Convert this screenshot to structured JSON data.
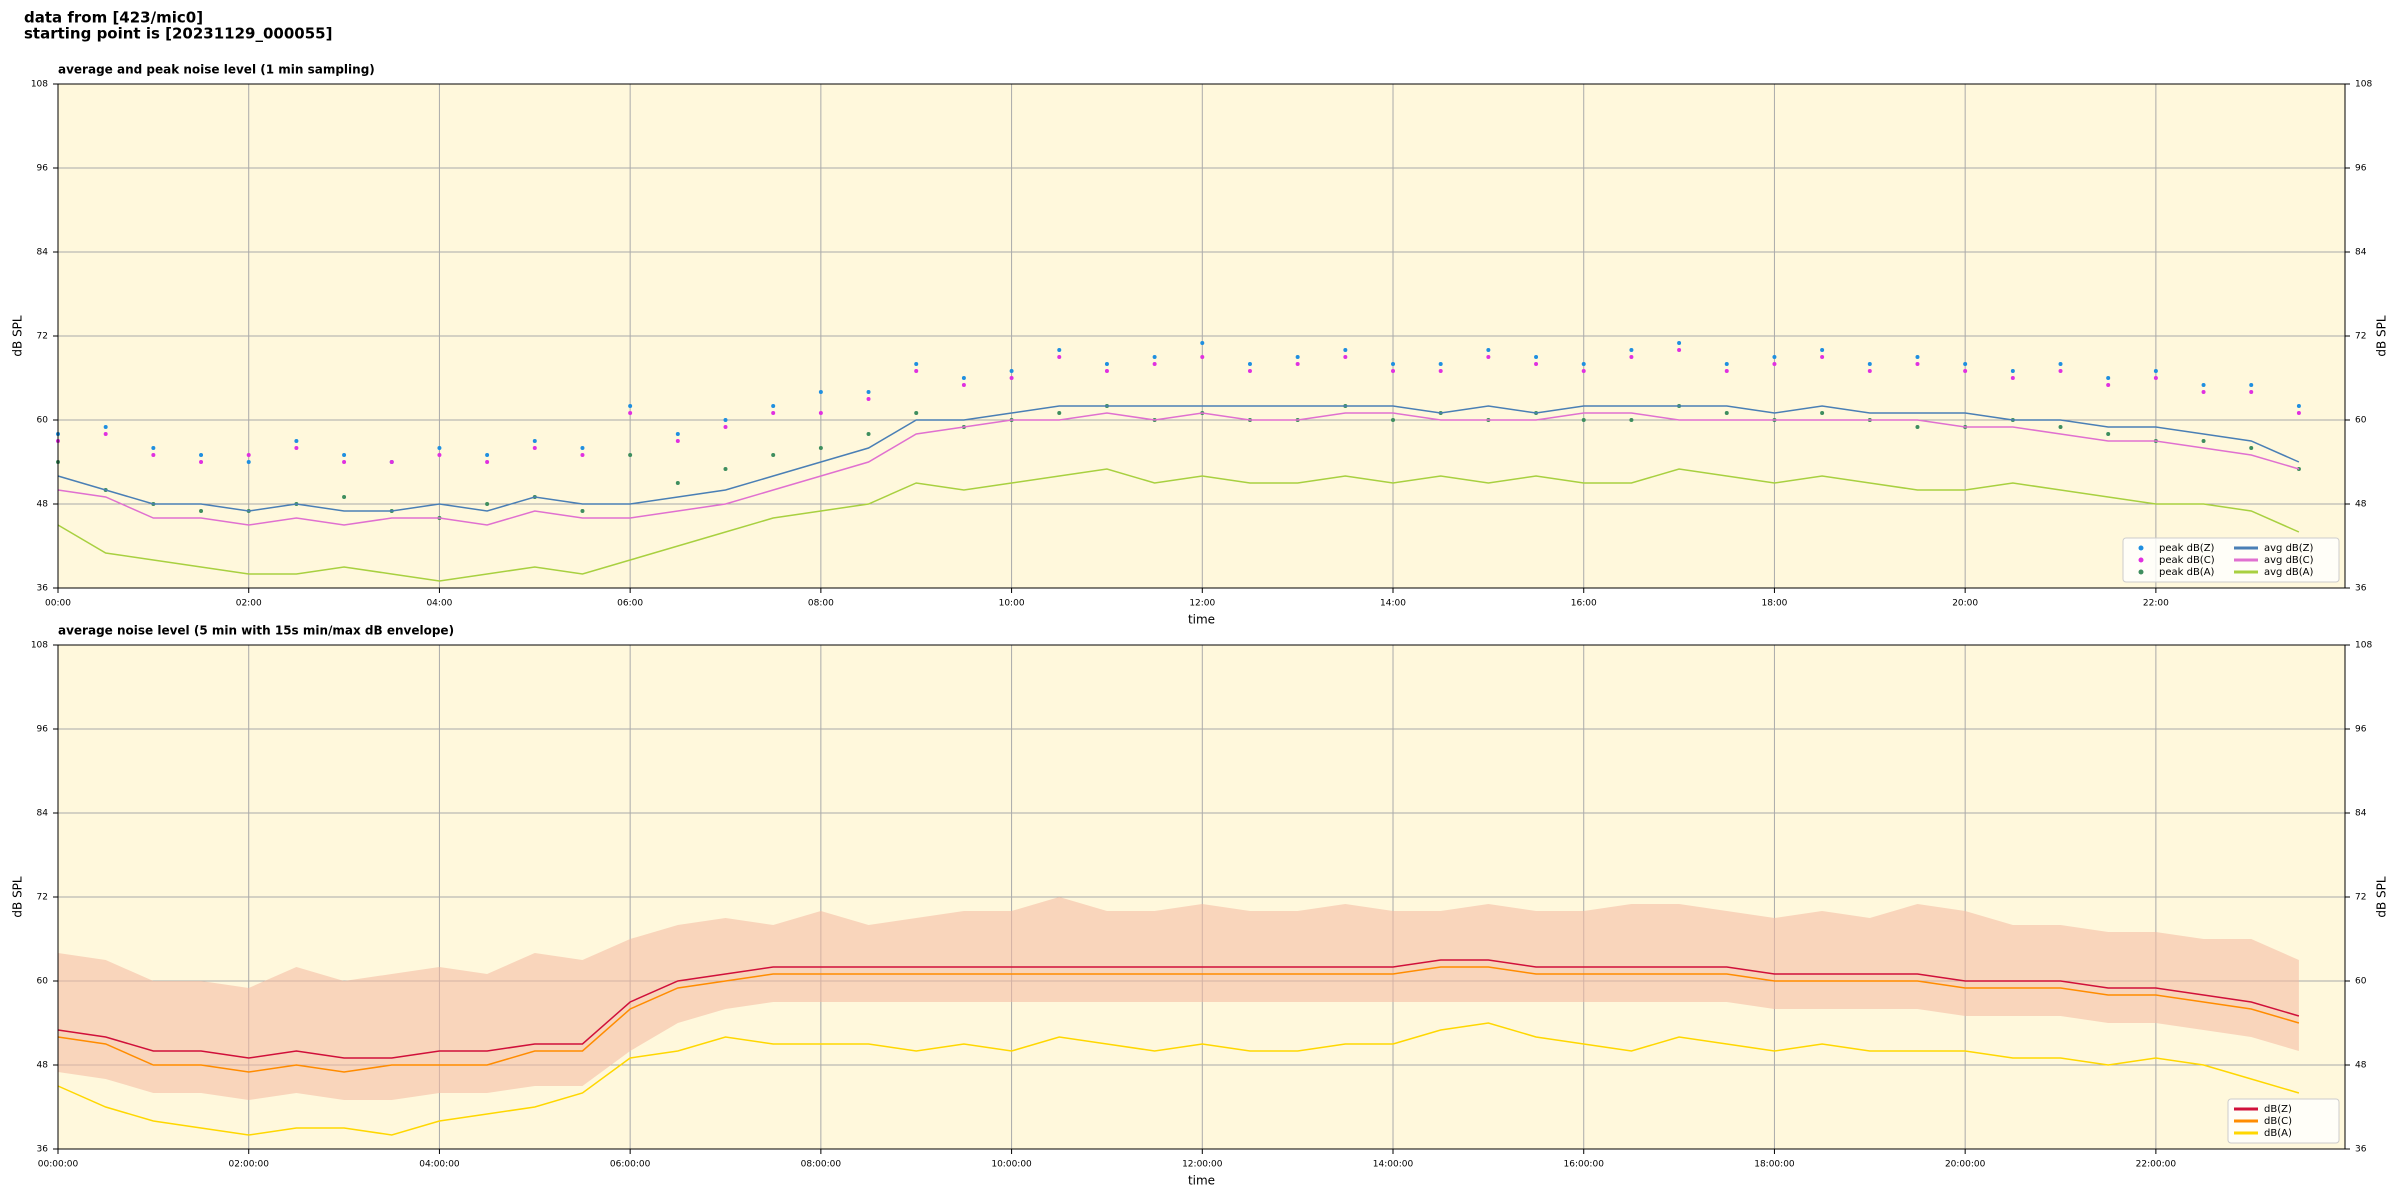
{
  "header": {
    "source": "data from [423/mic0]",
    "start": "starting point is [20231129_000055]"
  },
  "chart_data": [
    {
      "type": "line",
      "title": "average and peak noise level (1 min sampling)",
      "xlabel": "time",
      "ylabel": "dB SPL",
      "xlim": [
        "00:00",
        "23:59"
      ],
      "xticks": [
        "00:00",
        "02:00",
        "04:00",
        "06:00",
        "08:00",
        "10:00",
        "12:00",
        "14:00",
        "16:00",
        "18:00",
        "20:00",
        "22:00"
      ],
      "ylim": [
        36,
        108
      ],
      "yticks": [
        36,
        48,
        60,
        72,
        84,
        96,
        108
      ],
      "grid": true,
      "legend": "lower right",
      "legend_columns": 2,
      "background": "#fff8dc",
      "x": [
        "00:00",
        "00:30",
        "01:00",
        "01:30",
        "02:00",
        "02:30",
        "03:00",
        "03:30",
        "04:00",
        "04:30",
        "05:00",
        "05:30",
        "06:00",
        "06:30",
        "07:00",
        "07:30",
        "08:00",
        "08:30",
        "09:00",
        "09:30",
        "10:00",
        "10:30",
        "11:00",
        "11:30",
        "12:00",
        "12:30",
        "13:00",
        "13:30",
        "14:00",
        "14:30",
        "15:00",
        "15:30",
        "16:00",
        "16:30",
        "17:00",
        "17:30",
        "18:00",
        "18:30",
        "19:00",
        "19:30",
        "20:00",
        "20:30",
        "21:00",
        "21:30",
        "22:00",
        "22:30",
        "23:00",
        "23:30"
      ],
      "series": [
        {
          "name": "peak dB(Z)",
          "style": "dots",
          "color": "#1f8fe0",
          "values": [
            58,
            59,
            56,
            55,
            54,
            57,
            55,
            54,
            56,
            55,
            57,
            56,
            62,
            58,
            60,
            62,
            64,
            64,
            68,
            66,
            67,
            70,
            68,
            69,
            71,
            68,
            69,
            70,
            68,
            68,
            70,
            69,
            68,
            70,
            71,
            68,
            69,
            70,
            68,
            69,
            68,
            67,
            68,
            66,
            67,
            65,
            65,
            62
          ]
        },
        {
          "name": "peak dB(C)",
          "style": "dots",
          "color": "#e030e0",
          "values": [
            57,
            58,
            55,
            54,
            55,
            56,
            54,
            54,
            55,
            54,
            56,
            55,
            61,
            57,
            59,
            61,
            61,
            63,
            67,
            65,
            66,
            69,
            67,
            68,
            69,
            67,
            68,
            69,
            67,
            67,
            69,
            68,
            67,
            69,
            70,
            67,
            68,
            69,
            67,
            68,
            67,
            66,
            67,
            65,
            66,
            64,
            64,
            61
          ]
        },
        {
          "name": "peak dB(A)",
          "style": "dots",
          "color": "#3e8e5e",
          "values": [
            54,
            50,
            48,
            47,
            47,
            48,
            49,
            47,
            46,
            48,
            49,
            47,
            55,
            51,
            53,
            55,
            56,
            58,
            61,
            59,
            60,
            61,
            62,
            60,
            61,
            60,
            60,
            62,
            60,
            61,
            60,
            61,
            60,
            60,
            62,
            61,
            60,
            61,
            60,
            59,
            59,
            60,
            59,
            58,
            57,
            57,
            56,
            53
          ]
        },
        {
          "name": "avg dB(Z)",
          "style": "line",
          "color": "#4a7fb5",
          "values": [
            52,
            50,
            48,
            48,
            47,
            48,
            47,
            47,
            48,
            47,
            49,
            48,
            48,
            49,
            50,
            52,
            54,
            56,
            60,
            60,
            61,
            62,
            62,
            62,
            62,
            62,
            62,
            62,
            62,
            61,
            62,
            61,
            62,
            62,
            62,
            62,
            61,
            62,
            61,
            61,
            61,
            60,
            60,
            59,
            59,
            58,
            57,
            54
          ]
        },
        {
          "name": "avg dB(C)",
          "style": "line",
          "color": "#e070d0",
          "values": [
            50,
            49,
            46,
            46,
            45,
            46,
            45,
            46,
            46,
            45,
            47,
            46,
            46,
            47,
            48,
            50,
            52,
            54,
            58,
            59,
            60,
            60,
            61,
            60,
            61,
            60,
            60,
            61,
            61,
            60,
            60,
            60,
            61,
            61,
            60,
            60,
            60,
            60,
            60,
            60,
            59,
            59,
            58,
            57,
            57,
            56,
            55,
            53
          ]
        },
        {
          "name": "avg dB(A)",
          "style": "line",
          "color": "#a8d040",
          "values": [
            45,
            41,
            40,
            39,
            38,
            38,
            39,
            38,
            37,
            38,
            39,
            38,
            40,
            42,
            44,
            46,
            47,
            48,
            51,
            50,
            51,
            52,
            53,
            51,
            52,
            51,
            51,
            52,
            51,
            52,
            51,
            52,
            51,
            51,
            53,
            52,
            51,
            52,
            51,
            50,
            50,
            51,
            50,
            49,
            48,
            48,
            47,
            44
          ]
        }
      ]
    },
    {
      "type": "line",
      "title": "average noise level (5 min with 15s min/max dB envelope)",
      "xlabel": "time",
      "ylabel": "dB SPL",
      "xlim": [
        "00:00:00",
        "23:59:00"
      ],
      "xticks": [
        "00:00:00",
        "02:00:00",
        "04:00:00",
        "06:00:00",
        "08:00:00",
        "10:00:00",
        "12:00:00",
        "14:00:00",
        "16:00:00",
        "18:00:00",
        "20:00:00",
        "22:00:00"
      ],
      "ylim": [
        36,
        108
      ],
      "yticks": [
        36,
        48,
        60,
        72,
        84,
        96,
        108
      ],
      "grid": true,
      "legend": "lower right",
      "legend_columns": 1,
      "background": "#fff8dc",
      "x": [
        "00:00:00",
        "00:30:00",
        "01:00:00",
        "01:30:00",
        "02:00:00",
        "02:30:00",
        "03:00:00",
        "03:30:00",
        "04:00:00",
        "04:30:00",
        "05:00:00",
        "05:30:00",
        "06:00:00",
        "06:30:00",
        "07:00:00",
        "07:30:00",
        "08:00:00",
        "08:30:00",
        "09:00:00",
        "09:30:00",
        "10:00:00",
        "10:30:00",
        "11:00:00",
        "11:30:00",
        "12:00:00",
        "12:30:00",
        "13:00:00",
        "13:30:00",
        "14:00:00",
        "14:30:00",
        "15:00:00",
        "15:30:00",
        "16:00:00",
        "16:30:00",
        "17:00:00",
        "17:30:00",
        "18:00:00",
        "18:30:00",
        "19:00:00",
        "19:30:00",
        "20:00:00",
        "20:30:00",
        "21:00:00",
        "21:30:00",
        "22:00:00",
        "22:30:00",
        "23:00:00",
        "23:30:00"
      ],
      "envelope": {
        "color": "#f4b8a0",
        "min": [
          47,
          46,
          44,
          44,
          43,
          44,
          43,
          43,
          44,
          44,
          45,
          45,
          50,
          54,
          56,
          57,
          57,
          57,
          57,
          57,
          57,
          57,
          57,
          57,
          57,
          57,
          57,
          57,
          57,
          57,
          57,
          57,
          57,
          57,
          57,
          57,
          56,
          56,
          56,
          56,
          55,
          55,
          55,
          54,
          54,
          53,
          52,
          50
        ],
        "max": [
          64,
          63,
          60,
          60,
          59,
          62,
          60,
          61,
          62,
          61,
          64,
          63,
          66,
          68,
          69,
          68,
          70,
          68,
          69,
          70,
          70,
          72,
          70,
          70,
          71,
          70,
          70,
          71,
          70,
          70,
          71,
          70,
          70,
          71,
          71,
          70,
          69,
          70,
          69,
          71,
          70,
          68,
          68,
          67,
          67,
          66,
          66,
          63
        ]
      },
      "series": [
        {
          "name": "dB(Z)",
          "style": "line",
          "color": "#d0103a",
          "values": [
            53,
            52,
            50,
            50,
            49,
            50,
            49,
            49,
            50,
            50,
            51,
            51,
            57,
            60,
            61,
            62,
            62,
            62,
            62,
            62,
            62,
            62,
            62,
            62,
            62,
            62,
            62,
            62,
            62,
            63,
            63,
            62,
            62,
            62,
            62,
            62,
            61,
            61,
            61,
            61,
            60,
            60,
            60,
            59,
            59,
            58,
            57,
            55
          ]
        },
        {
          "name": "dB(C)",
          "style": "line",
          "color": "#ff8c00",
          "values": [
            52,
            51,
            48,
            48,
            47,
            48,
            47,
            48,
            48,
            48,
            50,
            50,
            56,
            59,
            60,
            61,
            61,
            61,
            61,
            61,
            61,
            61,
            61,
            61,
            61,
            61,
            61,
            61,
            61,
            62,
            62,
            61,
            61,
            61,
            61,
            61,
            60,
            60,
            60,
            60,
            59,
            59,
            59,
            58,
            58,
            57,
            56,
            54
          ]
        },
        {
          "name": "dB(A)",
          "style": "line",
          "color": "#ffd700",
          "values": [
            45,
            42,
            40,
            39,
            38,
            39,
            39,
            38,
            40,
            41,
            42,
            44,
            49,
            50,
            52,
            51,
            51,
            51,
            50,
            51,
            50,
            52,
            51,
            50,
            51,
            50,
            50,
            51,
            51,
            53,
            54,
            52,
            51,
            50,
            52,
            51,
            50,
            51,
            50,
            50,
            50,
            49,
            49,
            48,
            49,
            48,
            46,
            44
          ]
        }
      ]
    }
  ]
}
